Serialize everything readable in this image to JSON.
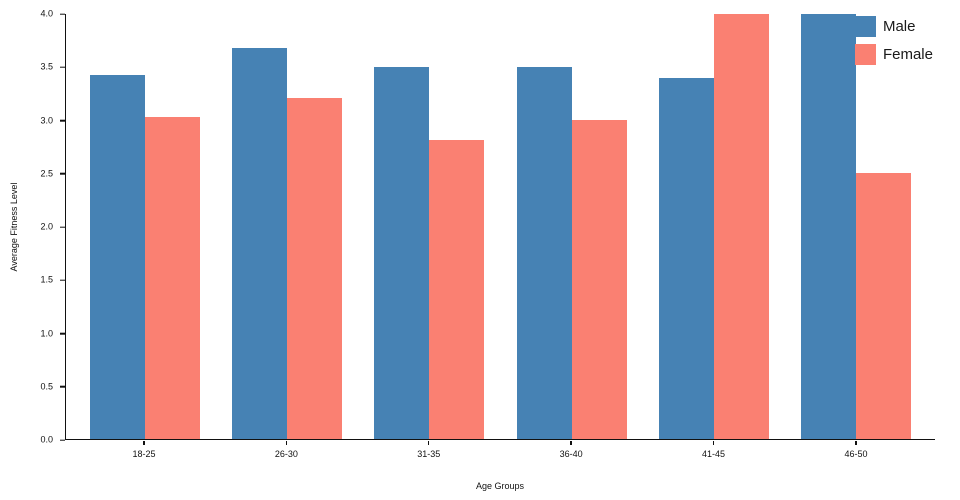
{
  "chart_data": {
    "type": "bar",
    "title": "",
    "xlabel": "Age Groups",
    "ylabel": "Average Fitness Level",
    "categories": [
      "18-25",
      "26-30",
      "31-35",
      "36-40",
      "41-45",
      "46-50"
    ],
    "series": [
      {
        "name": "Male",
        "color": "#4682B4",
        "values": [
          3.43,
          3.68,
          3.5,
          3.5,
          3.4,
          4.0
        ]
      },
      {
        "name": "Female",
        "color": "#FA8072",
        "values": [
          3.03,
          3.21,
          2.81,
          3.0,
          4.0,
          2.5
        ]
      }
    ],
    "ylim": [
      0,
      4
    ],
    "ytick_step": 0.5,
    "ytick_decimals": 1,
    "legend_position": "upper right",
    "grid": false
  }
}
